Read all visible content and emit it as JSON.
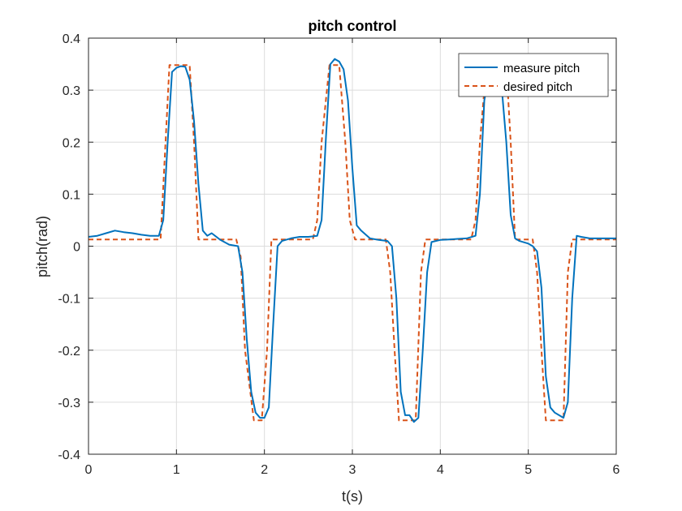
{
  "chart_data": {
    "type": "line",
    "title": "pitch control",
    "xlabel": "t(s)",
    "ylabel": "pitch(rad)",
    "xlim": [
      0,
      6
    ],
    "ylim": [
      -0.4,
      0.4
    ],
    "xticks": [
      0,
      1,
      2,
      3,
      4,
      5,
      6
    ],
    "xtick_labels": [
      "0",
      "1",
      "2",
      "3",
      "4",
      "5",
      "6"
    ],
    "yticks": [
      -0.4,
      -0.3,
      -0.2,
      -0.1,
      0,
      0.1,
      0.2,
      0.3,
      0.4
    ],
    "ytick_labels": [
      "-0.4",
      "-0.3",
      "-0.2",
      "-0.1",
      "0",
      "0.1",
      "0.2",
      "0.3",
      "0.4"
    ],
    "grid": true,
    "legend": {
      "position": "top-right"
    },
    "series": [
      {
        "name": "measure pitch",
        "color": "#0072BD",
        "style": "solid",
        "x": [
          0,
          0.1,
          0.2,
          0.3,
          0.4,
          0.5,
          0.6,
          0.7,
          0.8,
          0.85,
          0.9,
          0.95,
          1.0,
          1.05,
          1.1,
          1.15,
          1.2,
          1.25,
          1.3,
          1.35,
          1.4,
          1.5,
          1.6,
          1.7,
          1.75,
          1.8,
          1.85,
          1.9,
          1.95,
          2.0,
          2.05,
          2.1,
          2.15,
          2.2,
          2.3,
          2.4,
          2.5,
          2.6,
          2.65,
          2.7,
          2.75,
          2.8,
          2.85,
          2.9,
          2.95,
          3.0,
          3.05,
          3.1,
          3.2,
          3.3,
          3.4,
          3.45,
          3.5,
          3.55,
          3.6,
          3.65,
          3.7,
          3.75,
          3.8,
          3.85,
          3.9,
          4.0,
          4.1,
          4.2,
          4.3,
          4.4,
          4.45,
          4.5,
          4.55,
          4.6,
          4.65,
          4.7,
          4.75,
          4.8,
          4.85,
          4.9,
          5.0,
          5.05,
          5.1,
          5.15,
          5.2,
          5.25,
          5.3,
          5.35,
          5.4,
          5.45,
          5.5,
          5.55,
          5.6,
          5.7,
          5.8,
          5.9,
          6.0
        ],
        "y": [
          0.018,
          0.02,
          0.025,
          0.03,
          0.027,
          0.025,
          0.022,
          0.02,
          0.02,
          0.05,
          0.2,
          0.335,
          0.343,
          0.346,
          0.345,
          0.32,
          0.24,
          0.12,
          0.03,
          0.02,
          0.025,
          0.012,
          0.003,
          0.0,
          -0.05,
          -0.18,
          -0.28,
          -0.32,
          -0.33,
          -0.33,
          -0.31,
          -0.15,
          0.0,
          0.01,
          0.015,
          0.018,
          0.018,
          0.02,
          0.05,
          0.21,
          0.35,
          0.36,
          0.355,
          0.34,
          0.28,
          0.15,
          0.04,
          0.03,
          0.015,
          0.012,
          0.01,
          0.0,
          -0.1,
          -0.28,
          -0.325,
          -0.325,
          -0.338,
          -0.33,
          -0.2,
          -0.05,
          0.008,
          0.012,
          0.013,
          0.014,
          0.015,
          0.02,
          0.1,
          0.28,
          0.33,
          0.33,
          0.32,
          0.3,
          0.2,
          0.06,
          0.015,
          0.01,
          0.005,
          0.0,
          -0.01,
          -0.08,
          -0.25,
          -0.31,
          -0.32,
          -0.325,
          -0.33,
          -0.3,
          -0.1,
          0.02,
          0.018,
          0.015,
          0.015,
          0.015,
          0.015
        ]
      },
      {
        "name": "desired pitch",
        "color": "#D95319",
        "style": "dashed",
        "x": [
          0,
          0.82,
          0.92,
          1.15,
          1.2,
          1.25,
          1.68,
          1.73,
          1.78,
          1.88,
          1.97,
          2.03,
          2.08,
          2.15,
          2.55,
          2.6,
          2.65,
          2.74,
          2.85,
          2.92,
          2.97,
          3.03,
          3.09,
          3.38,
          3.43,
          3.48,
          3.53,
          3.57,
          3.72,
          3.78,
          3.83,
          4.35,
          4.4,
          4.45,
          4.5,
          4.55,
          4.75,
          4.8,
          4.85,
          5.05,
          5.1,
          5.15,
          5.2,
          5.24,
          5.4,
          5.45,
          5.5,
          6.0
        ],
        "y": [
          0.013,
          0.013,
          0.348,
          0.348,
          0.2,
          0.013,
          0.013,
          -0.02,
          -0.2,
          -0.335,
          -0.335,
          -0.2,
          0.013,
          0.013,
          0.013,
          0.05,
          0.2,
          0.348,
          0.348,
          0.2,
          0.05,
          0.013,
          0.013,
          0.013,
          -0.05,
          -0.2,
          -0.335,
          -0.335,
          -0.335,
          -0.05,
          0.013,
          0.013,
          0.05,
          0.2,
          0.3,
          0.348,
          0.348,
          0.2,
          0.013,
          0.013,
          -0.05,
          -0.2,
          -0.335,
          -0.335,
          -0.335,
          -0.05,
          0.013,
          0.013
        ]
      }
    ]
  }
}
